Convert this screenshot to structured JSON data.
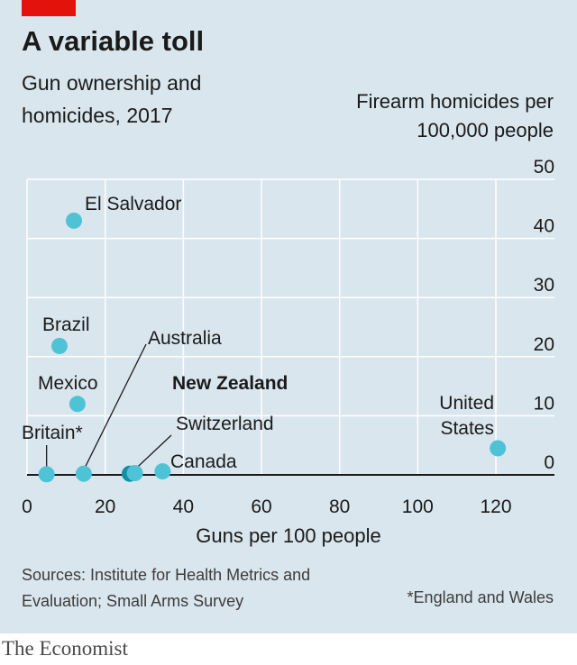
{
  "header": {
    "title": "A variable toll",
    "subtitle": "Gun ownership and homicides, 2017",
    "ylabel": "Firearm homicides per 100,000 people",
    "xlabel": "Guns per 100 people"
  },
  "footer": {
    "sources": "Sources: Institute for Health Metrics and Evaluation; Small Arms Survey",
    "note": "*England and Wales",
    "brand": "The Economist"
  },
  "colors": {
    "background": "#d9e6ee",
    "accent_red": "#e3120b",
    "point": "#4fc3d6",
    "highlight": "#0f8fa7",
    "grid": "#ffffff"
  },
  "chart_data": {
    "type": "scatter",
    "title": "A variable toll",
    "subtitle": "Gun ownership and homicides, 2017",
    "xlabel": "Guns per 100 people",
    "ylabel": "Firearm homicides per 100,000 people",
    "xlim": [
      0,
      135
    ],
    "ylim": [
      0,
      50
    ],
    "x_ticks": [
      0,
      20,
      40,
      60,
      80,
      100,
      120
    ],
    "y_ticks": [
      0,
      10,
      20,
      30,
      40,
      50
    ],
    "grid": true,
    "points": [
      {
        "label": "El Salvador",
        "x": 12,
        "y": 43
      },
      {
        "label": "Brazil",
        "x": 8.3,
        "y": 21.8
      },
      {
        "label": "Mexico",
        "x": 12.9,
        "y": 12
      },
      {
        "label": "Britain*",
        "x": 5,
        "y": 0.1
      },
      {
        "label": "Australia",
        "x": 14.5,
        "y": 0.2
      },
      {
        "label": "New Zealand",
        "x": 26.3,
        "y": 0.2,
        "highlight": true
      },
      {
        "label": "Switzerland",
        "x": 27.6,
        "y": 0.3
      },
      {
        "label": "Canada",
        "x": 34.7,
        "y": 0.6
      },
      {
        "label": "United States",
        "x": 120.5,
        "y": 4.5
      }
    ]
  }
}
